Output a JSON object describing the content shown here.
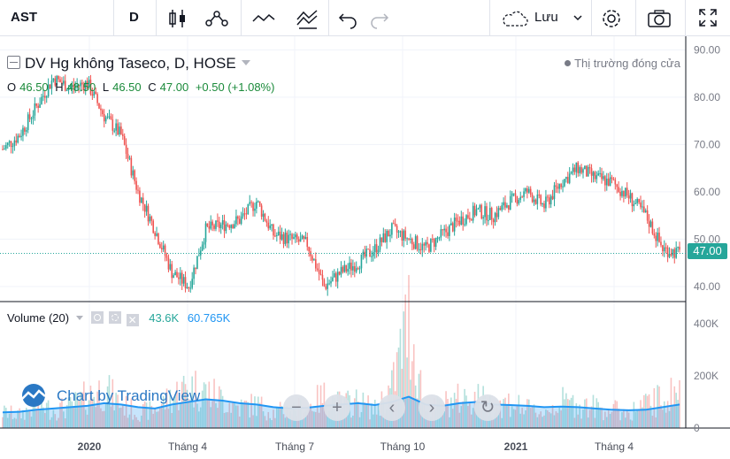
{
  "toolbar": {
    "symbol": "AST",
    "interval": "D",
    "save_label": "Lưu",
    "icons": [
      "candles-icon",
      "indicators-icon",
      "line-tool-icon",
      "compare-icon",
      "undo-icon",
      "redo-icon",
      "cloud-icon",
      "chevron-down-icon",
      "gear-icon",
      "camera-icon",
      "fullscreen-icon"
    ]
  },
  "legend": {
    "title": "DV Hg không Taseco, D, HOSE",
    "market_status": "Thị trường đóng cửa",
    "open_label": "O",
    "open_value": "46.50",
    "high_label": "H",
    "high_value": "48.50",
    "low_label": "L",
    "low_value": "46.50",
    "close_label": "C",
    "close_value": "47.00",
    "change": "+0.50 (+1.08%)",
    "volume_label": "Volume (20)",
    "volume_value": "43.6K",
    "volume_ma_value": "60.765K"
  },
  "watermark": "Chart by TradingView",
  "colors": {
    "up": "#26a69a",
    "down": "#ef5350",
    "volume_ma": "#2196f3",
    "accent": "#2962ff"
  },
  "chart_data": [
    {
      "type": "candlestick",
      "x": [
        "2019-11-04",
        "2019-11-18",
        "2019-12-02",
        "2019-12-16",
        "2020-01-06",
        "2020-01-20",
        "2020-02-03",
        "2020-02-17",
        "2020-03-02",
        "2020-03-16",
        "2020-03-30",
        "2020-04-13",
        "2020-04-27",
        "2020-05-11",
        "2020-05-25",
        "2020-06-08",
        "2020-06-22",
        "2020-07-06",
        "2020-07-20",
        "2020-08-03",
        "2020-08-17",
        "2020-08-31",
        "2020-09-14",
        "2020-09-28",
        "2020-10-12",
        "2020-10-26",
        "2020-11-09",
        "2020-11-23",
        "2020-12-07",
        "2020-12-21",
        "2021-01-04",
        "2021-01-18",
        "2021-02-01",
        "2021-02-15",
        "2021-03-01",
        "2021-03-15",
        "2021-03-29",
        "2021-04-12",
        "2021-04-26",
        "2021-05-10",
        "2021-05-24"
      ],
      "close": [
        69,
        72,
        78,
        84,
        82,
        83,
        76,
        72,
        60,
        52,
        43,
        40,
        52,
        53,
        54,
        58,
        51,
        50,
        49,
        40,
        43,
        45,
        48,
        52,
        50,
        48,
        51,
        54,
        56,
        55,
        58,
        60,
        57,
        62,
        65,
        63,
        62,
        59,
        55,
        48,
        47
      ],
      "yaxis": {
        "ticks": [
          40,
          50,
          60,
          70,
          80,
          90
        ],
        "range": [
          37,
          91
        ]
      },
      "xaxis": {
        "ticks": [
          "2020",
          "Tháng 4",
          "Tháng 7",
          "Tháng 10",
          "2021",
          "Tháng 4"
        ]
      },
      "last_price": "47.00"
    },
    {
      "type": "bar",
      "name": "Volume (20)",
      "yaxis": {
        "ticks": [
          "400K",
          "200K",
          "0"
        ],
        "range": [
          0,
          450
        ]
      },
      "values": [
        60,
        50,
        90,
        70,
        80,
        120,
        150,
        90,
        60,
        70,
        120,
        160,
        140,
        110,
        80,
        90,
        60,
        70,
        80,
        120,
        90,
        100,
        70,
        150,
        420,
        60,
        90,
        110,
        120,
        80,
        100,
        70,
        60,
        100,
        90,
        80,
        70,
        60,
        90,
        110,
        150
      ],
      "ma": [
        60,
        62,
        70,
        75,
        80,
        85,
        95,
        90,
        80,
        75,
        90,
        100,
        110,
        105,
        95,
        90,
        80,
        75,
        78,
        85,
        90,
        95,
        88,
        100,
        120,
        90,
        85,
        95,
        100,
        90,
        88,
        85,
        80,
        82,
        80,
        75,
        70,
        68,
        70,
        80,
        90
      ]
    }
  ]
}
